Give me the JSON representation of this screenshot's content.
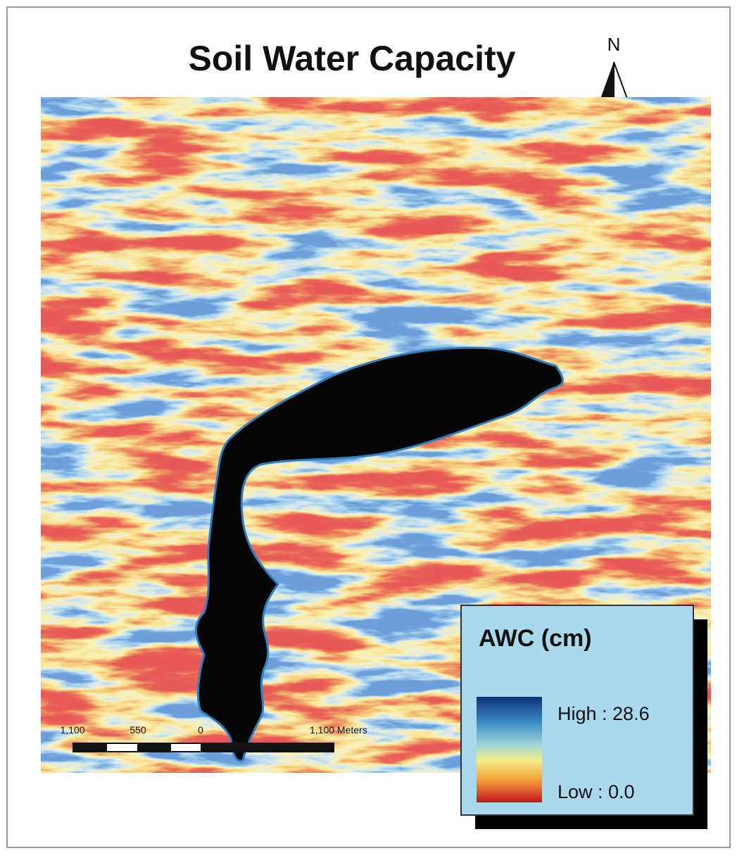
{
  "title": "Soil Water Capacity",
  "north_arrow": {
    "label": "N"
  },
  "legend": {
    "title": "AWC (cm)",
    "high_label": "High : 28.6",
    "low_label": "Low : 0.0"
  },
  "scale_bar": {
    "labels": [
      "1,100",
      "550",
      "0",
      "1,100 Meters"
    ]
  }
}
